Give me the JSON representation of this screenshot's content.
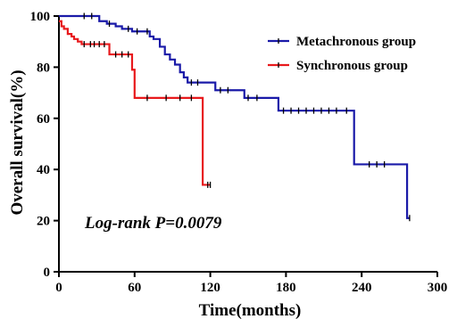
{
  "chart_data": {
    "type": "line",
    "subtype": "kaplan-meier step",
    "xlabel": "Time(months)",
    "ylabel": "Overall survival(%)",
    "xlim": [
      0,
      300
    ],
    "ylim": [
      0,
      100
    ],
    "xticks": [
      0,
      60,
      120,
      180,
      240,
      300
    ],
    "yticks": [
      0,
      20,
      40,
      60,
      80,
      100
    ],
    "grid": false,
    "legend_position": "top-right",
    "annotation": "Log-rank P=0.0079",
    "series": [
      {
        "name": "Metachronous group",
        "color": "#1a1aa8",
        "x": [
          0,
          27,
          32,
          38,
          45,
          50,
          58,
          66,
          72,
          75,
          80,
          84,
          88,
          92,
          96,
          99,
          102,
          108,
          112,
          124,
          147,
          174,
          234,
          276,
          278
        ],
        "y": [
          100,
          100,
          98,
          97,
          96,
          95,
          94,
          94,
          92,
          91,
          88,
          85,
          83,
          81,
          78,
          76,
          74,
          74,
          74,
          71,
          68,
          63,
          42,
          21,
          21
        ],
        "censor_x": [
          20,
          26,
          40,
          55,
          62,
          70,
          105,
          110,
          128,
          134,
          150,
          157,
          178,
          184,
          190,
          196,
          202,
          208,
          214,
          220,
          228,
          246,
          252,
          258,
          278
        ],
        "censor_y": [
          100,
          100,
          97,
          95,
          94,
          94,
          74,
          74,
          71,
          71,
          68,
          68,
          63,
          63,
          63,
          63,
          63,
          63,
          63,
          63,
          63,
          42,
          42,
          42,
          21
        ]
      },
      {
        "name": "Synchronous group",
        "color": "#e8191c",
        "x": [
          0,
          2,
          4,
          7,
          10,
          12,
          15,
          18,
          22,
          40,
          58,
          60,
          114,
          120
        ],
        "y": [
          98,
          96,
          95,
          93,
          92,
          91,
          90,
          89,
          89,
          85,
          79,
          68,
          34,
          34
        ],
        "censor_x": [
          20,
          25,
          28,
          32,
          36,
          45,
          50,
          55,
          70,
          85,
          96,
          105,
          118,
          120
        ],
        "censor_y": [
          89,
          89,
          89,
          89,
          89,
          85,
          85,
          85,
          68,
          68,
          68,
          68,
          34,
          34
        ]
      }
    ]
  }
}
